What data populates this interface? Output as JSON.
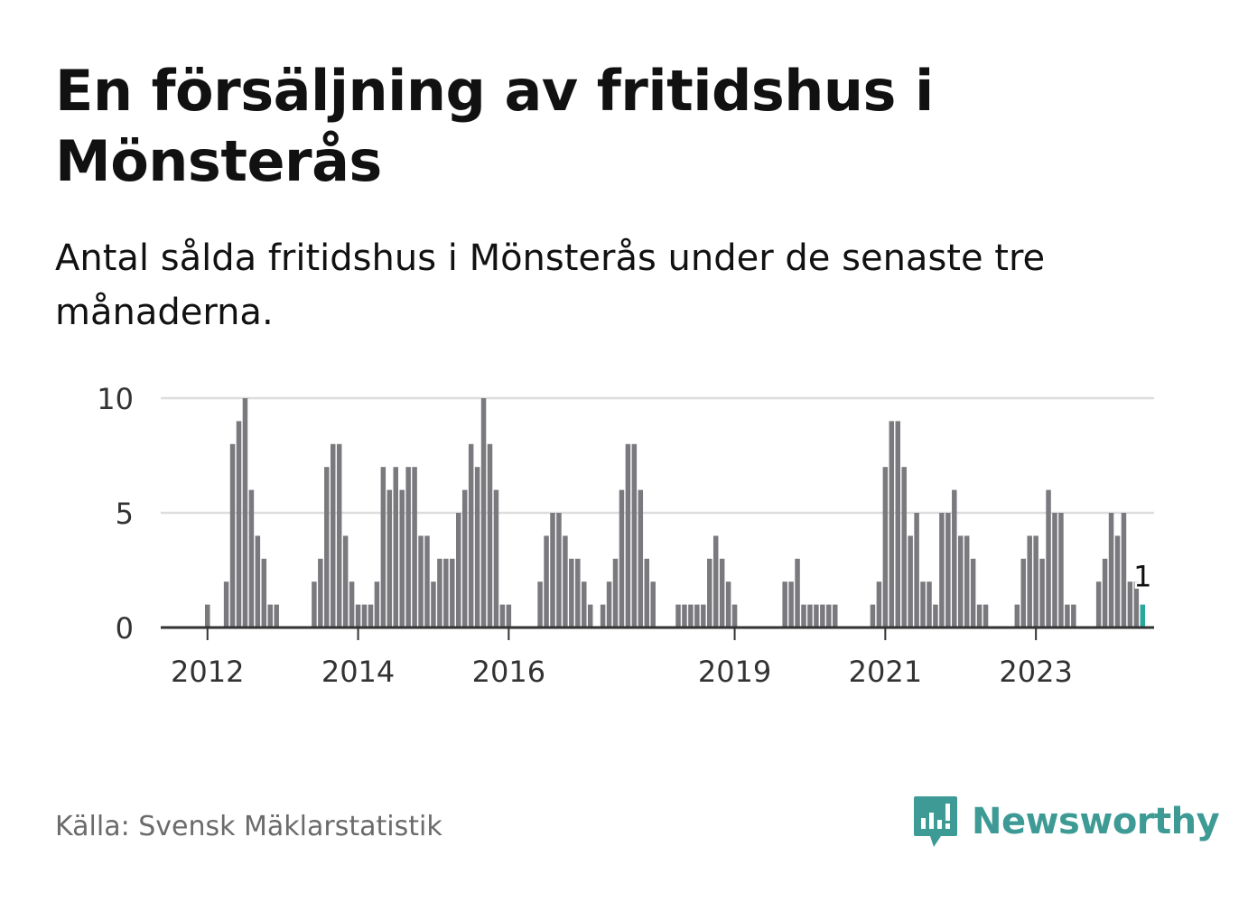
{
  "title": "En försäljning av fritidshus i Mönsterås",
  "subtitle": "Antal sålda fritidshus i Mönsterås under de senaste tre månaderna.",
  "source": "Källa: Svensk Mäklarstatistik",
  "brand": {
    "name": "Newsworthy",
    "color": "#3d9a94"
  },
  "colors": {
    "bar": "#7a797e",
    "highlight": "#2aa79b",
    "grid": "#dddddd",
    "axis": "#333333",
    "tick_text": "#333333"
  },
  "chart_data": {
    "type": "bar",
    "title": "En försäljning av fritidshus i Mönsterås",
    "xlabel": "",
    "ylabel": "",
    "ylim": [
      0,
      10
    ],
    "yticks": [
      0,
      5,
      10
    ],
    "grid": true,
    "start": "2011-05",
    "xticks": [
      {
        "label": "2012",
        "index": 8
      },
      {
        "label": "2014",
        "index": 32
      },
      {
        "label": "2016",
        "index": 56
      },
      {
        "label": "2019",
        "index": 92
      },
      {
        "label": "2021",
        "index": 116
      },
      {
        "label": "2023",
        "index": 140
      }
    ],
    "values": [
      0,
      0,
      0,
      0,
      0,
      0,
      0,
      0,
      1,
      0,
      0,
      2,
      8,
      9,
      10,
      6,
      4,
      3,
      1,
      1,
      0,
      0,
      0,
      0,
      0,
      2,
      3,
      7,
      8,
      8,
      4,
      2,
      1,
      1,
      1,
      2,
      7,
      6,
      7,
      6,
      7,
      7,
      4,
      4,
      2,
      3,
      3,
      3,
      5,
      6,
      8,
      7,
      10,
      8,
      6,
      1,
      1,
      0,
      0,
      0,
      0,
      2,
      4,
      5,
      5,
      4,
      3,
      3,
      2,
      1,
      0,
      1,
      2,
      3,
      6,
      8,
      8,
      6,
      3,
      2,
      0,
      0,
      0,
      1,
      1,
      1,
      1,
      1,
      3,
      4,
      3,
      2,
      1,
      0,
      0,
      0,
      0,
      0,
      0,
      0,
      2,
      2,
      3,
      1,
      1,
      1,
      1,
      1,
      1,
      0,
      0,
      0,
      0,
      0,
      1,
      2,
      7,
      9,
      9,
      7,
      4,
      5,
      2,
      2,
      1,
      5,
      5,
      6,
      4,
      4,
      3,
      1,
      1,
      0,
      0,
      0,
      0,
      1,
      3,
      4,
      4,
      3,
      6,
      5,
      5,
      1,
      1,
      0,
      0,
      0,
      2,
      3,
      5,
      4,
      5,
      2,
      2,
      1
    ],
    "highlight_index": 157,
    "annotation": {
      "label": "1",
      "index": 157
    }
  }
}
